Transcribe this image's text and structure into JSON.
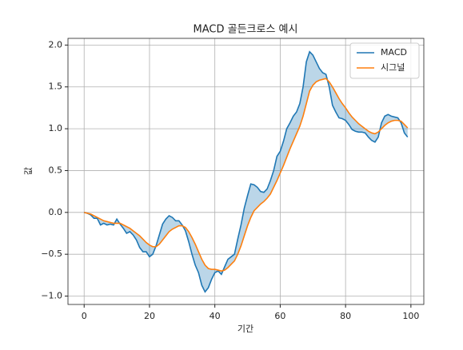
{
  "chart_data": {
    "type": "line",
    "title": "MACD 골든크로스 예시",
    "xlabel": "기간",
    "ylabel": "값",
    "x": [
      0,
      1,
      2,
      3,
      4,
      5,
      6,
      7,
      8,
      9,
      10,
      11,
      12,
      13,
      14,
      15,
      16,
      17,
      18,
      19,
      20,
      21,
      22,
      23,
      24,
      25,
      26,
      27,
      28,
      29,
      30,
      31,
      32,
      33,
      34,
      35,
      36,
      37,
      38,
      39,
      40,
      41,
      42,
      43,
      44,
      45,
      46,
      47,
      48,
      49,
      50,
      51,
      52,
      53,
      54,
      55,
      56,
      57,
      58,
      59,
      60,
      61,
      62,
      63,
      64,
      65,
      66,
      67,
      68,
      69,
      70,
      71,
      72,
      73,
      74,
      75,
      76,
      77,
      78,
      79,
      80,
      81,
      82,
      83,
      84,
      85,
      86,
      87,
      88,
      89,
      90,
      91,
      92,
      93,
      94,
      95,
      96,
      97,
      98,
      99
    ],
    "series": [
      {
        "name": "MACD",
        "color": "#1f77b4",
        "values": [
          0,
          -0.01,
          -0.03,
          -0.07,
          -0.07,
          -0.15,
          -0.13,
          -0.15,
          -0.14,
          -0.15,
          -0.08,
          -0.14,
          -0.19,
          -0.25,
          -0.23,
          -0.27,
          -0.33,
          -0.42,
          -0.47,
          -0.47,
          -0.53,
          -0.5,
          -0.4,
          -0.27,
          -0.14,
          -0.08,
          -0.04,
          -0.06,
          -0.1,
          -0.1,
          -0.15,
          -0.22,
          -0.35,
          -0.5,
          -0.63,
          -0.72,
          -0.87,
          -0.95,
          -0.9,
          -0.8,
          -0.72,
          -0.7,
          -0.74,
          -0.65,
          -0.56,
          -0.53,
          -0.5,
          -0.32,
          -0.15,
          0.05,
          0.2,
          0.34,
          0.33,
          0.3,
          0.25,
          0.24,
          0.28,
          0.38,
          0.5,
          0.67,
          0.73,
          0.85,
          1.0,
          1.07,
          1.15,
          1.2,
          1.3,
          1.5,
          1.8,
          1.92,
          1.88,
          1.8,
          1.72,
          1.67,
          1.65,
          1.5,
          1.28,
          1.2,
          1.13,
          1.12,
          1.1,
          1.05,
          0.99,
          0.97,
          0.96,
          0.96,
          0.95,
          0.9,
          0.86,
          0.84,
          0.9,
          1.07,
          1.15,
          1.17,
          1.15,
          1.14,
          1.13,
          1.07,
          0.95,
          0.9
        ]
      },
      {
        "name": "시그널",
        "color": "#ff7f0e",
        "values": [
          0,
          -0.01,
          -0.02,
          -0.04,
          -0.06,
          -0.08,
          -0.1,
          -0.11,
          -0.12,
          -0.13,
          -0.13,
          -0.13,
          -0.15,
          -0.17,
          -0.19,
          -0.22,
          -0.25,
          -0.28,
          -0.32,
          -0.36,
          -0.39,
          -0.41,
          -0.41,
          -0.38,
          -0.33,
          -0.28,
          -0.23,
          -0.2,
          -0.18,
          -0.16,
          -0.16,
          -0.18,
          -0.23,
          -0.3,
          -0.38,
          -0.47,
          -0.56,
          -0.63,
          -0.67,
          -0.68,
          -0.68,
          -0.69,
          -0.7,
          -0.69,
          -0.66,
          -0.62,
          -0.58,
          -0.5,
          -0.4,
          -0.28,
          -0.16,
          -0.06,
          0.02,
          0.06,
          0.1,
          0.13,
          0.17,
          0.22,
          0.3,
          0.38,
          0.47,
          0.56,
          0.66,
          0.76,
          0.85,
          0.94,
          1.03,
          1.15,
          1.3,
          1.45,
          1.52,
          1.56,
          1.58,
          1.59,
          1.6,
          1.56,
          1.5,
          1.43,
          1.36,
          1.3,
          1.25,
          1.19,
          1.14,
          1.1,
          1.06,
          1.03,
          1.0,
          0.97,
          0.95,
          0.94,
          0.96,
          1.0,
          1.04,
          1.07,
          1.09,
          1.1,
          1.1,
          1.09,
          1.05,
          1.01
        ]
      }
    ],
    "fill_between_color": "#1f77b4",
    "xlim": [
      -4.95,
      103.95
    ],
    "xticks": [
      0,
      20,
      40,
      60,
      80,
      100
    ],
    "ylim": [
      -1.1,
      2.08
    ],
    "yticks": [
      {
        "value": -1.0,
        "label": "−1.0"
      },
      {
        "value": -0.5,
        "label": "−0.5"
      },
      {
        "value": 0,
        "label": "0.0"
      },
      {
        "value": 0.5,
        "label": "0.5"
      },
      {
        "value": 1.0,
        "label": "1.0"
      },
      {
        "value": 1.5,
        "label": "1.5"
      },
      {
        "value": 2.0,
        "label": "2.0"
      }
    ],
    "grid": true,
    "legend": "upper right"
  }
}
